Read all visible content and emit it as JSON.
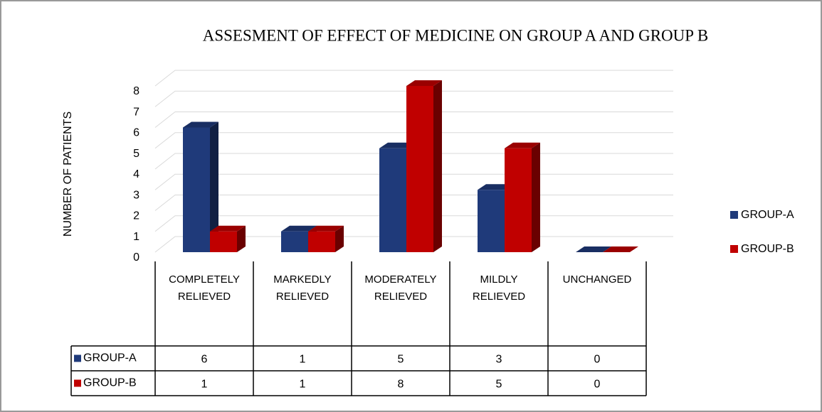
{
  "chart_data": {
    "type": "bar3d",
    "title": "ASSESMENT OF EFFECT OF  MEDICINE ON GROUP A AND GROUP B",
    "y_label": "NUMBER OF PATIENTS",
    "categories": [
      "COMPLETELY RELIEVED",
      "MARKEDLY RELIEVED",
      "MODERATELY RELIEVED",
      "MILDLY RELIEVED",
      "UNCHANGED"
    ],
    "series": [
      {
        "name": "GROUP-A",
        "color": "#1f3a7a",
        "values": [
          6,
          1,
          5,
          3,
          0
        ]
      },
      {
        "name": "GROUP-B",
        "color": "#c00000",
        "values": [
          1,
          1,
          8,
          5,
          0
        ]
      }
    ],
    "ylim": [
      0,
      8
    ],
    "yticks": [
      0,
      1,
      2,
      3,
      4,
      5,
      6,
      7,
      8
    ],
    "grid": true,
    "legend": "right"
  }
}
